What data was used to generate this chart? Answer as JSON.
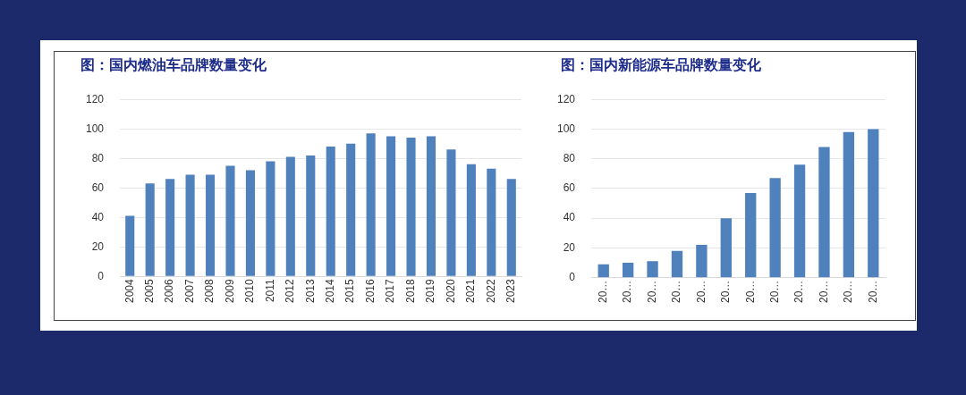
{
  "chart_data": [
    {
      "type": "bar",
      "title": "图：国内燃油车品牌数量变化",
      "categories": [
        "2004",
        "2005",
        "2006",
        "2007",
        "2008",
        "2009",
        "2010",
        "2011",
        "2012",
        "2013",
        "2014",
        "2015",
        "2016",
        "2017",
        "2018",
        "2019",
        "2020",
        "2021",
        "2022",
        "2023"
      ],
      "values": [
        41,
        63,
        66,
        69,
        69,
        75,
        72,
        78,
        81,
        82,
        88,
        90,
        97,
        95,
        94,
        95,
        86,
        76,
        73,
        66
      ],
      "color": "#4f81bd",
      "ylim": [
        0,
        120
      ],
      "yticks": [
        0,
        20,
        40,
        60,
        80,
        100,
        120
      ],
      "grid": "y"
    },
    {
      "type": "bar",
      "title": "图：国内新能源车品牌数量变化",
      "categories": [
        "20…",
        "20…",
        "20…",
        "20…",
        "20…",
        "20…",
        "20…",
        "20…",
        "20…",
        "20…",
        "20…",
        "20…"
      ],
      "values": [
        9,
        10,
        11,
        18,
        22,
        40,
        57,
        67,
        76,
        88,
        98,
        100
      ],
      "color": "#4f81bd",
      "ylim": [
        0,
        120
      ],
      "yticks": [
        0,
        20,
        40,
        60,
        80,
        100,
        120
      ],
      "grid": "y"
    }
  ]
}
